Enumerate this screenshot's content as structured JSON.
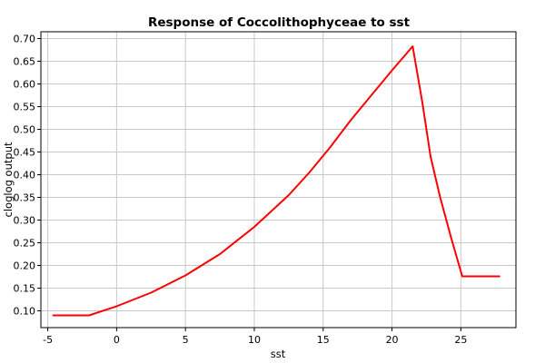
{
  "chart_data": {
    "type": "line",
    "title": "Response of Coccolithophyceae to sst",
    "xlabel": "sst",
    "ylabel": "cloglog output",
    "xlim": [
      -5.5,
      29
    ],
    "ylim": [
      0.063,
      0.715
    ],
    "x_ticks": [
      -5,
      0,
      5,
      10,
      15,
      20,
      25
    ],
    "x_tick_labels": [
      "-5",
      "0",
      "5",
      "10",
      "15",
      "20",
      "25"
    ],
    "y_ticks": [
      0.1,
      0.15,
      0.2,
      0.25,
      0.3,
      0.35,
      0.4,
      0.45,
      0.5,
      0.55,
      0.6,
      0.65,
      0.7
    ],
    "y_tick_labels": [
      "0.10",
      "0.15",
      "0.20",
      "0.25",
      "0.30",
      "0.35",
      "0.40",
      "0.45",
      "0.50",
      "0.55",
      "0.60",
      "0.65",
      "0.70"
    ],
    "grid": true,
    "legend": "none",
    "series": [
      {
        "color": "#ff0000",
        "x": [
          -4.6,
          -2.0,
          0.0,
          2.5,
          5.0,
          7.5,
          10.0,
          12.5,
          14.0,
          15.5,
          17.0,
          18.5,
          20.0,
          21.0,
          21.5,
          22.2,
          22.8,
          23.5,
          24.3,
          25.1,
          26.0,
          27.8
        ],
        "y": [
          0.09,
          0.09,
          0.11,
          0.14,
          0.178,
          0.225,
          0.285,
          0.355,
          0.405,
          0.46,
          0.52,
          0.575,
          0.63,
          0.665,
          0.683,
          0.56,
          0.44,
          0.35,
          0.26,
          0.176,
          0.176,
          0.176
        ]
      }
    ]
  }
}
